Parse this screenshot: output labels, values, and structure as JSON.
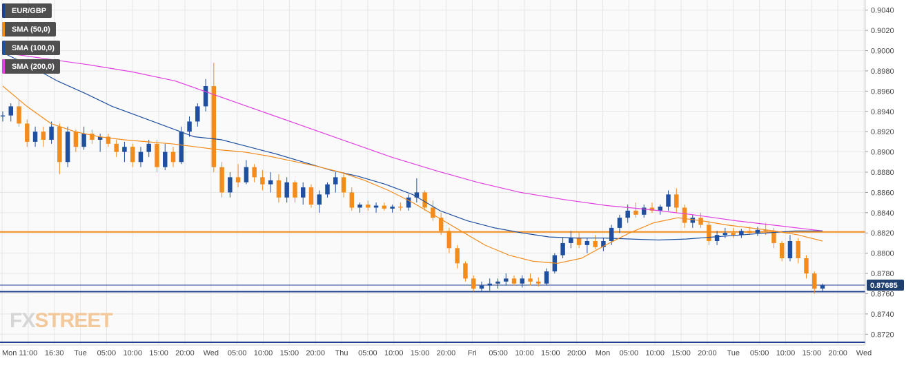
{
  "legend": [
    {
      "label": "EUR/GBP",
      "color": "#1f3f8f"
    },
    {
      "label": "SMA (50,0)",
      "color": "#f28c1c"
    },
    {
      "label": "SMA (100,0)",
      "color": "#1f4f9f"
    },
    {
      "label": "SMA (200,0)",
      "color": "#e040e0"
    }
  ],
  "watermark": {
    "fx": "FX",
    "street": "STREET"
  },
  "price_badge": "0.87685",
  "colors": {
    "up_candle": "#1f4f9f",
    "down_candle": "#f28c1c",
    "sma50": "#f28c1c",
    "sma100": "#1f4f9f",
    "sma200": "#e040e0",
    "support_line": "#1f3f8f",
    "resistance_line": "#f28c1c",
    "grid": "#e6e6e6",
    "badge_bg": "#1f3f6f"
  },
  "chart_data": {
    "type": "line",
    "title": "EUR/GBP",
    "ylim": [
      0.871,
      0.905
    ],
    "y_ticks": [
      "0.8720",
      "0.8740",
      "0.8760",
      "0.8780",
      "0.8800",
      "0.8820",
      "0.8840",
      "0.8860",
      "0.8880",
      "0.8900",
      "0.8920",
      "0.8940",
      "0.8960",
      "0.8980",
      "0.9000",
      "0.9020",
      "0.9040"
    ],
    "x_ticks": [
      "Mon",
      "11:00",
      "16:30",
      "Tue",
      "05:00",
      "10:00",
      "15:00",
      "20:00",
      "Wed",
      "05:00",
      "10:00",
      "15:00",
      "20:00",
      "Thu",
      "05:00",
      "10:00",
      "15:00",
      "20:00",
      "Fri",
      "05:00",
      "10:00",
      "15:00",
      "20:00",
      "Mon",
      "05:00",
      "10:00",
      "15:00",
      "20:00",
      "Tue",
      "05:00",
      "10:00",
      "15:00",
      "20:00",
      "Wed"
    ],
    "grid": true,
    "legend_position": "top-left",
    "horizontal_levels": [
      {
        "name": "resistance",
        "value": 0.8821
      },
      {
        "name": "support",
        "value": 0.8762
      },
      {
        "name": "current",
        "value": 0.87685
      },
      {
        "name": "lower",
        "value": 0.8712
      }
    ],
    "candles_ohlc": [
      [
        0.8935,
        0.894,
        0.893,
        0.8936
      ],
      [
        0.8936,
        0.8948,
        0.893,
        0.8945
      ],
      [
        0.8945,
        0.8952,
        0.8925,
        0.8928
      ],
      [
        0.8928,
        0.8932,
        0.8905,
        0.891
      ],
      [
        0.891,
        0.8925,
        0.8905,
        0.892
      ],
      [
        0.892,
        0.8925,
        0.8905,
        0.8912
      ],
      [
        0.8912,
        0.893,
        0.8908,
        0.8925
      ],
      [
        0.8925,
        0.8928,
        0.8878,
        0.889
      ],
      [
        0.889,
        0.8925,
        0.8885,
        0.892
      ],
      [
        0.892,
        0.8922,
        0.89,
        0.8905
      ],
      [
        0.8905,
        0.8925,
        0.8902,
        0.8918
      ],
      [
        0.8918,
        0.8922,
        0.8908,
        0.8912
      ],
      [
        0.8912,
        0.8918,
        0.89,
        0.8915
      ],
      [
        0.8915,
        0.8918,
        0.8905,
        0.8908
      ],
      [
        0.8908,
        0.8912,
        0.8895,
        0.89
      ],
      [
        0.89,
        0.891,
        0.889,
        0.8905
      ],
      [
        0.8905,
        0.8908,
        0.8885,
        0.889
      ],
      [
        0.889,
        0.8905,
        0.8885,
        0.89
      ],
      [
        0.89,
        0.8912,
        0.8895,
        0.8908
      ],
      [
        0.8908,
        0.8912,
        0.888,
        0.8885
      ],
      [
        0.8885,
        0.8908,
        0.8882,
        0.89
      ],
      [
        0.89,
        0.8905,
        0.8885,
        0.889
      ],
      [
        0.889,
        0.8925,
        0.8888,
        0.892
      ],
      [
        0.892,
        0.8935,
        0.8915,
        0.893
      ],
      [
        0.893,
        0.8948,
        0.8925,
        0.8945
      ],
      [
        0.8945,
        0.8972,
        0.894,
        0.8965
      ],
      [
        0.8965,
        0.8988,
        0.888,
        0.8885
      ],
      [
        0.8885,
        0.889,
        0.8855,
        0.886
      ],
      [
        0.886,
        0.888,
        0.8855,
        0.8875
      ],
      [
        0.8875,
        0.8888,
        0.8865,
        0.887
      ],
      [
        0.887,
        0.8892,
        0.8868,
        0.8885
      ],
      [
        0.8885,
        0.8888,
        0.887,
        0.8875
      ],
      [
        0.8875,
        0.8882,
        0.8862,
        0.8868
      ],
      [
        0.8868,
        0.888,
        0.886,
        0.8872
      ],
      [
        0.8872,
        0.8878,
        0.885,
        0.8855
      ],
      [
        0.8855,
        0.8875,
        0.885,
        0.887
      ],
      [
        0.887,
        0.8872,
        0.885,
        0.8855
      ],
      [
        0.8855,
        0.887,
        0.8848,
        0.8865
      ],
      [
        0.8865,
        0.8868,
        0.8845,
        0.8848
      ],
      [
        0.8848,
        0.8862,
        0.884,
        0.8858
      ],
      [
        0.8858,
        0.887,
        0.8855,
        0.8868
      ],
      [
        0.8868,
        0.888,
        0.886,
        0.8875
      ],
      [
        0.8875,
        0.888,
        0.8855,
        0.886
      ],
      [
        0.886,
        0.8865,
        0.8842,
        0.8845
      ],
      [
        0.8845,
        0.885,
        0.884,
        0.8848
      ],
      [
        0.8848,
        0.8852,
        0.8842,
        0.8845
      ],
      [
        0.8845,
        0.885,
        0.884,
        0.8847
      ],
      [
        0.8847,
        0.885,
        0.8842,
        0.8844
      ],
      [
        0.8844,
        0.8848,
        0.884,
        0.8846
      ],
      [
        0.8846,
        0.885,
        0.8842,
        0.8845
      ],
      [
        0.8845,
        0.8858,
        0.8842,
        0.8855
      ],
      [
        0.8855,
        0.8874,
        0.885,
        0.886
      ],
      [
        0.886,
        0.8862,
        0.8842,
        0.8845
      ],
      [
        0.8845,
        0.8852,
        0.8832,
        0.8835
      ],
      [
        0.8835,
        0.884,
        0.8818,
        0.8822
      ],
      [
        0.8822,
        0.8825,
        0.88,
        0.8805
      ],
      [
        0.8805,
        0.8808,
        0.8785,
        0.879
      ],
      [
        0.879,
        0.8792,
        0.8772,
        0.8775
      ],
      [
        0.8775,
        0.8778,
        0.8762,
        0.8765
      ],
      [
        0.8765,
        0.8772,
        0.8762,
        0.8768
      ],
      [
        0.8768,
        0.8775,
        0.8763,
        0.877
      ],
      [
        0.877,
        0.8775,
        0.8765,
        0.8772
      ],
      [
        0.8772,
        0.878,
        0.8768,
        0.8775
      ],
      [
        0.8775,
        0.8778,
        0.8768,
        0.877
      ],
      [
        0.877,
        0.8778,
        0.8766,
        0.8775
      ],
      [
        0.8775,
        0.878,
        0.8768,
        0.8772
      ],
      [
        0.8772,
        0.8776,
        0.8767,
        0.877
      ],
      [
        0.877,
        0.8785,
        0.8768,
        0.8782
      ],
      [
        0.8782,
        0.88,
        0.878,
        0.8798
      ],
      [
        0.8798,
        0.8815,
        0.8795,
        0.881
      ],
      [
        0.881,
        0.8822,
        0.8805,
        0.8815
      ],
      [
        0.8815,
        0.882,
        0.8805,
        0.8808
      ],
      [
        0.8808,
        0.8815,
        0.88,
        0.8812
      ],
      [
        0.8812,
        0.8818,
        0.8804,
        0.8806
      ],
      [
        0.8806,
        0.8815,
        0.8802,
        0.8812
      ],
      [
        0.8812,
        0.8828,
        0.8808,
        0.8825
      ],
      [
        0.8825,
        0.8838,
        0.882,
        0.8835
      ],
      [
        0.8835,
        0.8848,
        0.883,
        0.8842
      ],
      [
        0.8842,
        0.885,
        0.8835,
        0.8838
      ],
      [
        0.8838,
        0.8848,
        0.8835,
        0.8845
      ],
      [
        0.8845,
        0.885,
        0.884,
        0.8842
      ],
      [
        0.8842,
        0.8848,
        0.8838,
        0.8846
      ],
      [
        0.8846,
        0.8862,
        0.8842,
        0.8858
      ],
      [
        0.8858,
        0.8864,
        0.884,
        0.8845
      ],
      [
        0.8845,
        0.8848,
        0.8825,
        0.883
      ],
      [
        0.883,
        0.8838,
        0.8825,
        0.8835
      ],
      [
        0.8835,
        0.884,
        0.8825,
        0.8828
      ],
      [
        0.8828,
        0.8832,
        0.8808,
        0.8812
      ],
      [
        0.8812,
        0.8822,
        0.8808,
        0.8818
      ],
      [
        0.8818,
        0.8825,
        0.8815,
        0.882
      ],
      [
        0.882,
        0.8825,
        0.8815,
        0.8818
      ],
      [
        0.8818,
        0.8824,
        0.8815,
        0.8822
      ],
      [
        0.8822,
        0.8826,
        0.8818,
        0.882
      ],
      [
        0.882,
        0.8826,
        0.8817,
        0.8823
      ],
      [
        0.8823,
        0.883,
        0.8818,
        0.8822
      ],
      [
        0.8822,
        0.8825,
        0.8805,
        0.881
      ],
      [
        0.881,
        0.8812,
        0.8792,
        0.8795
      ],
      [
        0.8795,
        0.8818,
        0.8792,
        0.8812
      ],
      [
        0.8812,
        0.8815,
        0.879,
        0.8795
      ],
      [
        0.8795,
        0.8798,
        0.8775,
        0.878
      ],
      [
        0.878,
        0.8782,
        0.876,
        0.8765
      ],
      [
        0.8765,
        0.877,
        0.8762,
        0.87685
      ]
    ],
    "sma_50": [
      0.8965,
      0.8945,
      0.8928,
      0.892,
      0.8915,
      0.8912,
      0.891,
      0.8908,
      0.8905,
      0.8902,
      0.89,
      0.8896,
      0.8891,
      0.8886,
      0.888,
      0.8872,
      0.8862,
      0.885,
      0.8836,
      0.8822,
      0.8808,
      0.8798,
      0.8792,
      0.879,
      0.8795,
      0.8808,
      0.882,
      0.883,
      0.8835,
      0.8832,
      0.8828,
      0.8825,
      0.8822,
      0.8818,
      0.8812
    ],
    "sma_100": [
      0.8998,
      0.8985,
      0.897,
      0.8958,
      0.8945,
      0.8935,
      0.8925,
      0.8915,
      0.8912,
      0.8905,
      0.8898,
      0.889,
      0.8882,
      0.8876,
      0.8868,
      0.8858,
      0.8842,
      0.8832,
      0.8825,
      0.882,
      0.8816,
      0.8815,
      0.8815,
      0.8814,
      0.8813,
      0.8814,
      0.8816,
      0.8818,
      0.882,
      0.8822,
      0.8822
    ],
    "sma_200": [
      0.8998,
      0.8992,
      0.8986,
      0.8979,
      0.897,
      0.8955,
      0.894,
      0.8925,
      0.891,
      0.8895,
      0.8882,
      0.887,
      0.886,
      0.8853,
      0.8847,
      0.8843,
      0.8838,
      0.8832,
      0.8827,
      0.8822
    ]
  }
}
